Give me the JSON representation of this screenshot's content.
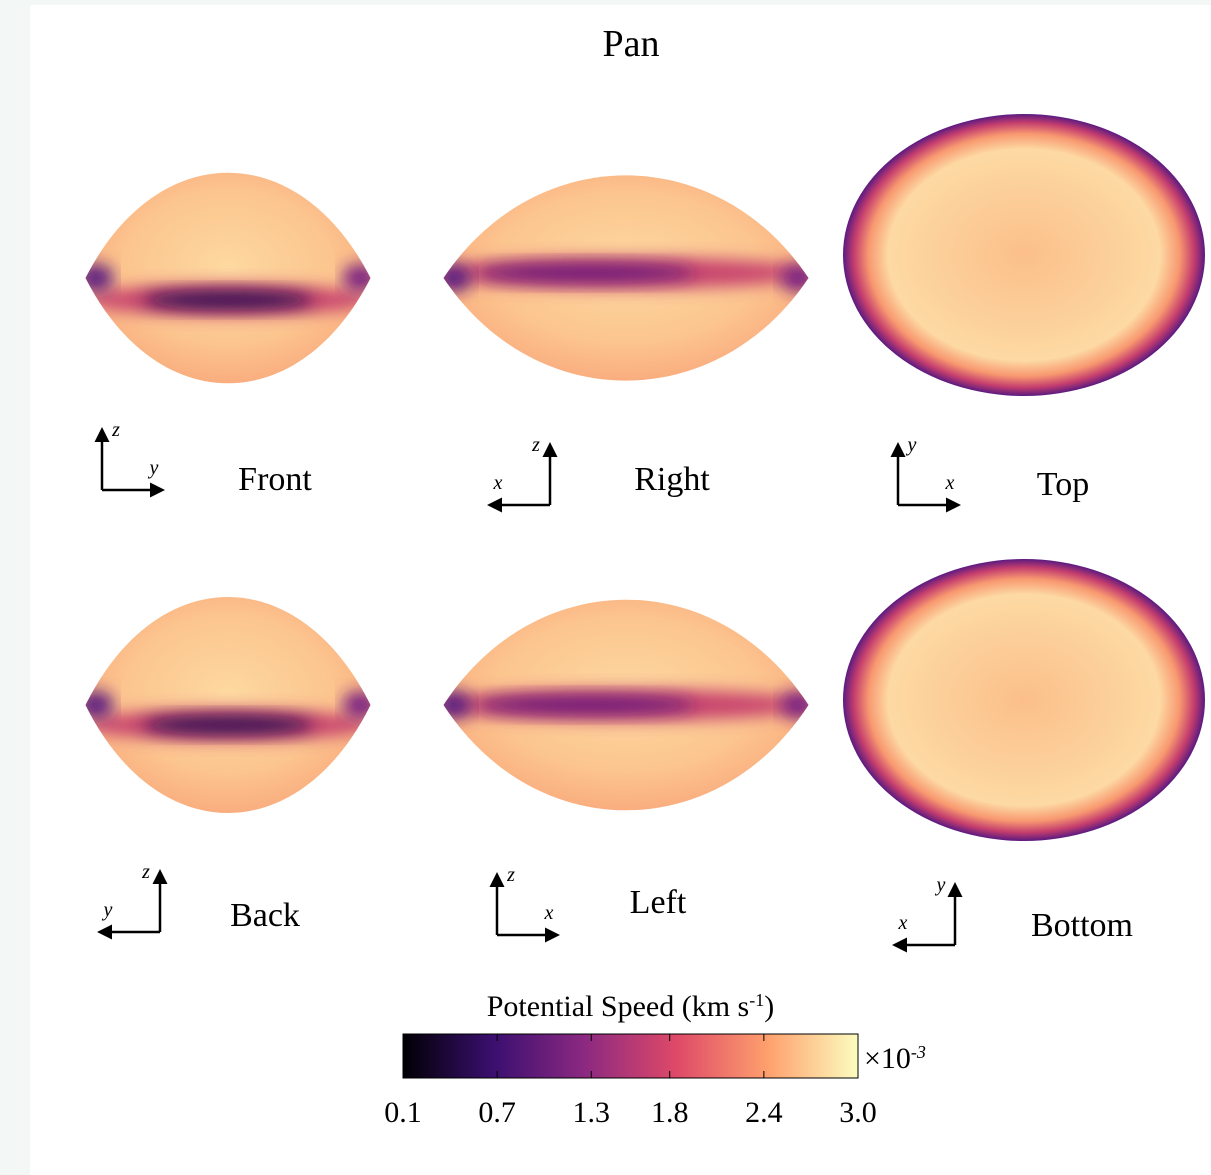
{
  "title": "Pan",
  "views": [
    {
      "label": "Front",
      "axes": [
        "z",
        "y"
      ]
    },
    {
      "label": "Right",
      "axes": [
        "z",
        "x"
      ]
    },
    {
      "label": "Top",
      "axes": [
        "y",
        "x"
      ]
    },
    {
      "label": "Back",
      "axes": [
        "z",
        "y"
      ]
    },
    {
      "label": "Left",
      "axes": [
        "z",
        "x"
      ]
    },
    {
      "label": "Bottom",
      "axes": [
        "y",
        "x"
      ]
    }
  ],
  "colorbar": {
    "label": "Potential Speed (km s",
    "label_sup": "-1",
    "label_end": ")",
    "multiplier": "×10",
    "multiplier_sup": "-3",
    "lim": [
      0.1,
      3.0
    ],
    "ticks": [
      0.1,
      0.7,
      1.3,
      1.8,
      2.4,
      {
        "value": 3,
        "label": "3.0"
      }
    ],
    "colors": [
      "#000004",
      "#3b0f70",
      "#8c2981",
      "#de4968",
      "#fe9f6d",
      "#fcfdbf"
    ]
  }
}
